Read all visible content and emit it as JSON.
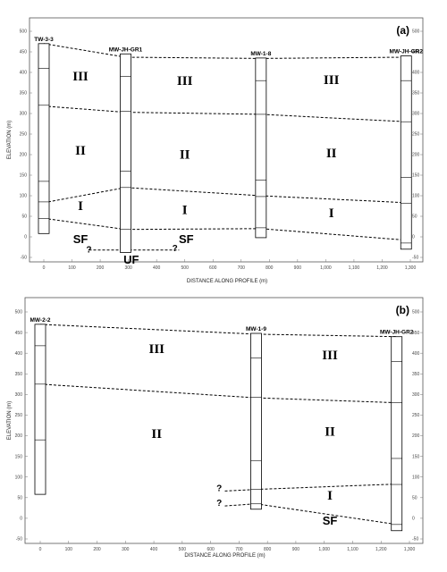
{
  "panels": [
    {
      "label": "(a)",
      "xlabel": "DISTANCE ALONG PROFILE (m)",
      "ylabel": "ELEVATION (m)",
      "x_ticks": [
        "0",
        "100",
        "200",
        "300",
        "400",
        "500",
        "600",
        "700",
        "800",
        "900",
        "1,000",
        "1,100",
        "1,200",
        "1,300"
      ],
      "y_ticks": [
        "-50",
        "0",
        "50",
        "100",
        "150",
        "200",
        "250",
        "300",
        "350",
        "400",
        "450",
        "500"
      ],
      "wells": [
        {
          "name": "TW-3-3",
          "x": 0,
          "top": 470,
          "bottom": 8,
          "marks": [
            410,
            320,
            135,
            85,
            45
          ]
        },
        {
          "name": "MW-JH-GR1",
          "x": 290,
          "top": 445,
          "bottom": -38,
          "marks": [
            390,
            305,
            160,
            120,
            18
          ]
        },
        {
          "name": "MW-1-8",
          "x": 770,
          "top": 435,
          "bottom": -2,
          "marks": [
            380,
            298,
            138,
            98,
            22
          ]
        },
        {
          "name": "MW-JH-GR2",
          "x": 1285,
          "top": 440,
          "bottom": -30,
          "marks": [
            380,
            280,
            145,
            82,
            -15
          ]
        }
      ],
      "contacts": [
        {
          "points": [
            [
              0,
              470
            ],
            [
              290,
              437
            ],
            [
              770,
              434
            ],
            [
              1285,
              437
            ]
          ]
        },
        {
          "points": [
            [
              0,
              318
            ],
            [
              290,
              303
            ],
            [
              770,
              298
            ],
            [
              1285,
              280
            ]
          ]
        },
        {
          "points": [
            [
              0,
              83
            ],
            [
              290,
              120
            ],
            [
              770,
              100
            ],
            [
              1285,
              83
            ]
          ]
        },
        {
          "points": [
            [
              0,
              45
            ],
            [
              290,
              18
            ],
            [
              770,
              20
            ],
            [
              1285,
              -8
            ]
          ]
        },
        {
          "points": [
            [
              160,
              -32
            ],
            [
              480,
              -32
            ]
          ]
        }
      ],
      "units": [
        {
          "text": "III",
          "x": 130,
          "y": 380
        },
        {
          "text": "III",
          "x": 500,
          "y": 370
        },
        {
          "text": "III",
          "x": 1020,
          "y": 372
        },
        {
          "text": "II",
          "x": 130,
          "y": 200
        },
        {
          "text": "II",
          "x": 500,
          "y": 190
        },
        {
          "text": "II",
          "x": 1020,
          "y": 193
        },
        {
          "text": "I",
          "x": 130,
          "y": 65
        },
        {
          "text": "I",
          "x": 500,
          "y": 55
        },
        {
          "text": "I",
          "x": 1020,
          "y": 48
        }
      ],
      "other_labels": [
        {
          "text": "SF",
          "x": 130,
          "y": -15,
          "kind": "sf"
        },
        {
          "text": "SF",
          "x": 505,
          "y": -15,
          "kind": "sf"
        },
        {
          "text": "UF",
          "x": 310,
          "y": -65,
          "kind": "sf"
        },
        {
          "text": "?",
          "x": 160,
          "y": -38,
          "kind": "q"
        },
        {
          "text": "?",
          "x": 465,
          "y": -35,
          "kind": "q"
        }
      ]
    },
    {
      "label": "(b)",
      "xlabel": "DISTANCE ALONG PROFILE (m)",
      "ylabel": "ELEVATION (m)",
      "x_ticks": [
        "0",
        "100",
        "200",
        "300",
        "400",
        "500",
        "600",
        "700",
        "800",
        "900",
        "1,000",
        "1,100",
        "1,200",
        "1,300"
      ],
      "y_ticks": [
        "-50",
        "0",
        "50",
        "100",
        "150",
        "200",
        "250",
        "300",
        "350",
        "400",
        "450",
        "500"
      ],
      "wells": [
        {
          "name": "MW-2-2",
          "x": 0,
          "top": 470,
          "bottom": 58,
          "marks": [
            418,
            325,
            190
          ]
        },
        {
          "name": "MW-1-9",
          "x": 760,
          "top": 448,
          "bottom": 22,
          "marks": [
            388,
            293,
            140,
            70,
            35
          ]
        },
        {
          "name": "MW-JH-GR2",
          "x": 1255,
          "top": 440,
          "bottom": -30,
          "marks": [
            380,
            280,
            145,
            82,
            -15
          ]
        }
      ],
      "contacts": [
        {
          "points": [
            [
              0,
              470
            ],
            [
              760,
              446
            ],
            [
              1255,
              440
            ]
          ]
        },
        {
          "points": [
            [
              0,
              325
            ],
            [
              760,
              292
            ],
            [
              1255,
              280
            ]
          ]
        },
        {
          "points": [
            [
              650,
              66
            ],
            [
              760,
              70
            ],
            [
              1255,
              83
            ]
          ]
        },
        {
          "points": [
            [
              650,
              30
            ],
            [
              760,
              35
            ],
            [
              1255,
              -15
            ]
          ]
        }
      ],
      "units": [
        {
          "text": "III",
          "x": 410,
          "y": 400
        },
        {
          "text": "III",
          "x": 1020,
          "y": 385
        },
        {
          "text": "II",
          "x": 410,
          "y": 195
        },
        {
          "text": "II",
          "x": 1020,
          "y": 200
        },
        {
          "text": "I",
          "x": 1020,
          "y": 45
        }
      ],
      "other_labels": [
        {
          "text": "SF",
          "x": 1020,
          "y": -15,
          "kind": "sf"
        },
        {
          "text": "?",
          "x": 630,
          "y": 66,
          "kind": "q"
        },
        {
          "text": "?",
          "x": 630,
          "y": 30,
          "kind": "q"
        }
      ]
    }
  ]
}
